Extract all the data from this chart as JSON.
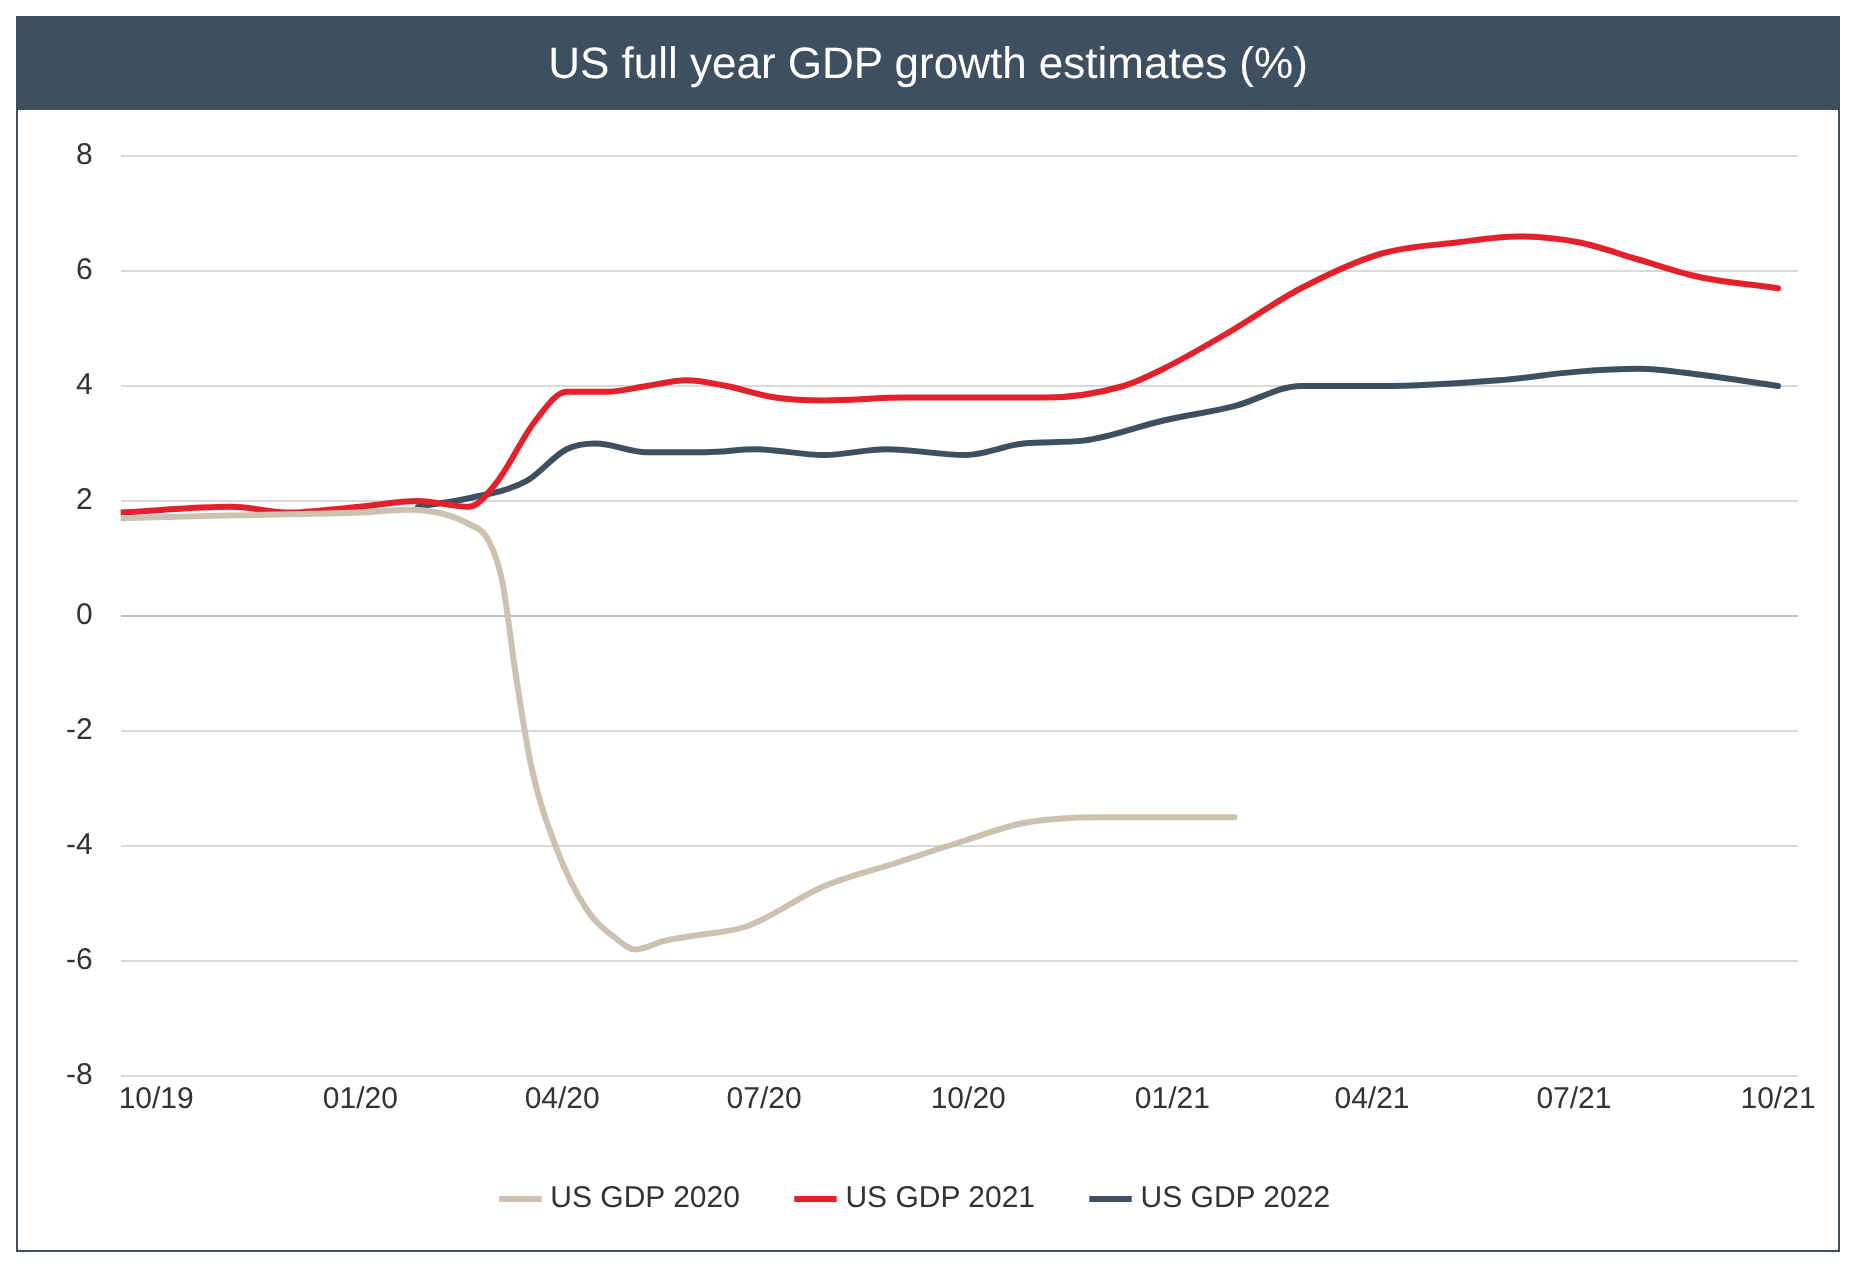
{
  "chart_data": {
    "type": "line",
    "title": "US full year GDP growth estimates (%)",
    "xlim": [
      "2019-09-15",
      "2021-10-10"
    ],
    "xticks": [
      {
        "value": "2019-10-01",
        "label": "10/19"
      },
      {
        "value": "2020-01-01",
        "label": "01/20"
      },
      {
        "value": "2020-04-01",
        "label": "04/20"
      },
      {
        "value": "2020-07-01",
        "label": "07/20"
      },
      {
        "value": "2020-10-01",
        "label": "10/20"
      },
      {
        "value": "2021-01-01",
        "label": "01/21"
      },
      {
        "value": "2021-04-01",
        "label": "04/21"
      },
      {
        "value": "2021-07-01",
        "label": "07/21"
      },
      {
        "value": "2021-10-01",
        "label": "10/21"
      }
    ],
    "ylim": [
      -8,
      8
    ],
    "yticks": [
      -8,
      -6,
      -4,
      -2,
      0,
      2,
      4,
      6,
      8
    ],
    "grid": "y",
    "legend": "bottom",
    "marker": "none",
    "line_style": "solid",
    "series": [
      {
        "name": "US GDP 2020",
        "color": "#cbc2b1",
        "x": [
          "2019-09-15",
          "2019-11-04",
          "2020-01-01",
          "2020-01-23",
          "2020-02-19",
          "2020-02-28",
          "2020-03-05",
          "2020-03-11",
          "2020-03-18",
          "2020-03-29",
          "2020-04-12",
          "2020-04-25",
          "2020-05-04",
          "2020-05-17",
          "2020-06-01",
          "2020-06-23",
          "2020-07-28",
          "2020-08-29",
          "2020-09-30",
          "2020-10-26",
          "2020-12-01",
          "2021-01-29"
        ],
        "values": [
          1.7,
          1.75,
          1.8,
          1.85,
          1.6,
          1.3,
          0.6,
          -1,
          -2.6,
          -4,
          -5.1,
          -5.6,
          -5.8,
          -5.65,
          -5.55,
          -5.4,
          -4.7,
          -4.3,
          -3.9,
          -3.6,
          -3.5,
          -3.5
        ]
      },
      {
        "name": "US GDP 2021",
        "color": "#e3212b",
        "x": [
          "2019-09-15",
          "2019-11-04",
          "2019-11-30",
          "2020-01-01",
          "2020-01-27",
          "2020-02-19",
          "2020-03-02",
          "2020-03-20",
          "2020-04-03",
          "2020-04-21",
          "2020-05-09",
          "2020-05-27",
          "2020-06-14",
          "2020-07-06",
          "2020-07-28",
          "2020-09-03",
          "2020-11-05",
          "2020-12-10",
          "2020-12-28",
          "2021-01-25",
          "2021-02-28",
          "2021-04-05",
          "2021-05-10",
          "2021-06-06",
          "2021-07-03",
          "2021-07-30",
          "2021-08-26",
          "2021-10-01"
        ],
        "values": [
          1.8,
          1.9,
          1.8,
          1.9,
          2.0,
          1.9,
          2.3,
          3.4,
          3.9,
          3.9,
          4.0,
          4.1,
          4.0,
          3.8,
          3.75,
          3.8,
          3.8,
          4.0,
          4.3,
          4.9,
          5.7,
          6.3,
          6.5,
          6.6,
          6.5,
          6.2,
          5.9,
          5.7
        ]
      },
      {
        "name": "US GDP 2022",
        "color": "#3e4f60",
        "x": [
          "2020-01-27",
          "2020-02-19",
          "2020-03-16",
          "2020-04-03",
          "2020-04-16",
          "2020-05-09",
          "2020-06-05",
          "2020-06-27",
          "2020-07-28",
          "2020-08-25",
          "2020-09-30",
          "2020-10-26",
          "2020-11-22",
          "2020-12-28",
          "2021-01-29",
          "2021-02-28",
          "2021-04-05",
          "2021-05-28",
          "2021-07-03",
          "2021-07-30",
          "2021-08-26",
          "2021-10-01"
        ],
        "values": [
          1.9,
          2.05,
          2.35,
          2.9,
          3.0,
          2.85,
          2.85,
          2.9,
          2.8,
          2.9,
          2.8,
          3.0,
          3.05,
          3.4,
          3.65,
          4.0,
          4.0,
          4.1,
          4.25,
          4.3,
          4.2,
          4.0
        ]
      }
    ]
  }
}
